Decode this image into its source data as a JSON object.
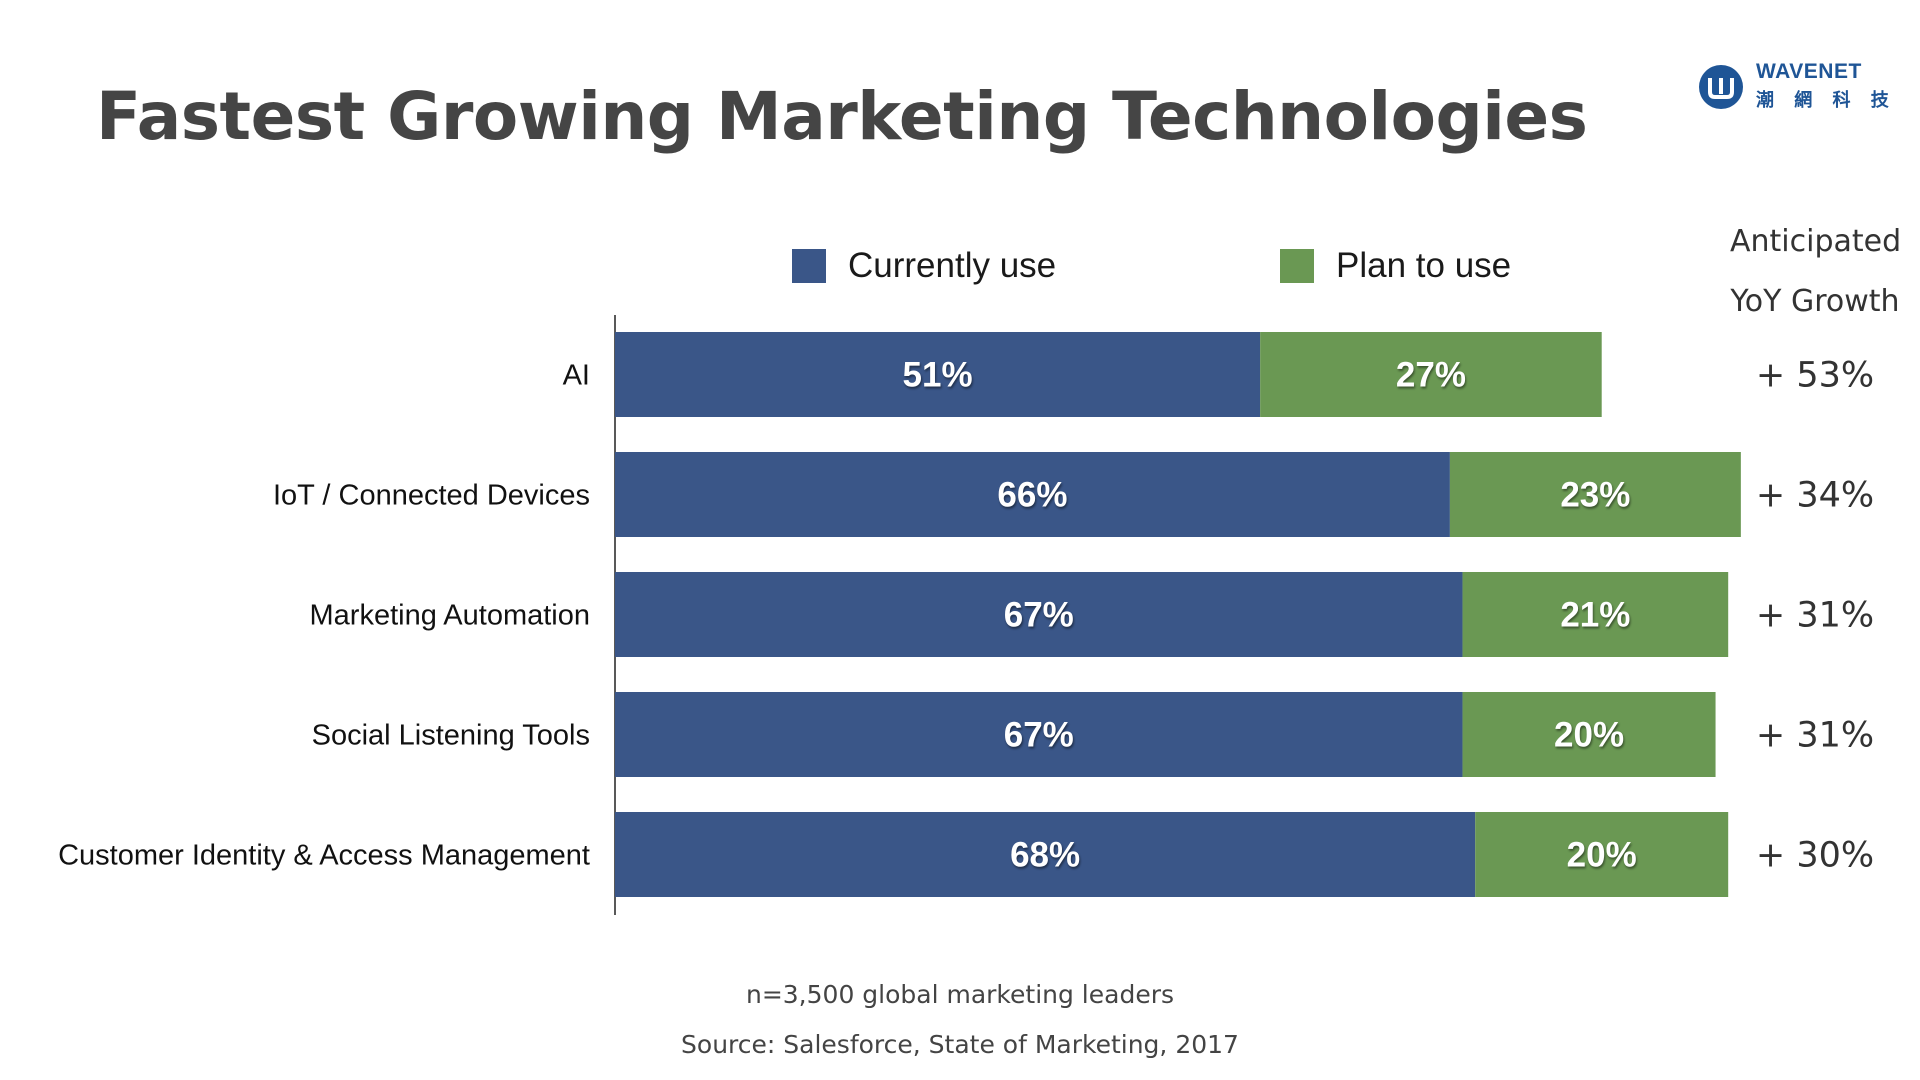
{
  "title": "Fastest Growing Marketing Technologies",
  "logo": {
    "name": "WAVENET",
    "subtitle": "潮 網 科 技",
    "color": "#1f5596"
  },
  "growth_header": [
    "Anticipated",
    "YoY Growth"
  ],
  "footnotes": {
    "sample": "n=3,500 global marketing leaders",
    "source": "Source: Salesforce, State of Marketing, 2017"
  },
  "chart_data": {
    "type": "bar",
    "orientation": "horizontal",
    "stacked": true,
    "title": "Fastest Growing Marketing Technologies",
    "categories": [
      "AI",
      "IoT / Connected Devices",
      "Marketing Automation",
      "Social Listening Tools",
      "Customer Identity & Access Management"
    ],
    "series": [
      {
        "name": "Currently use",
        "color": "#3a5688",
        "values": [
          51,
          66,
          67,
          67,
          68
        ],
        "labels": [
          "51%",
          "66%",
          "67%",
          "67%",
          "68%"
        ]
      },
      {
        "name": "Plan to use",
        "color": "#6a9853",
        "values": [
          27,
          23,
          21,
          20,
          20
        ],
        "labels": [
          "27%",
          "23%",
          "21%",
          "20%",
          "20%"
        ]
      }
    ],
    "growth": [
      "+ 53%",
      "+ 34%",
      "+ 31%",
      "+ 31%",
      "+ 30%"
    ],
    "xlim": [
      0,
      100
    ],
    "legend_position": "top",
    "grid": false
  }
}
